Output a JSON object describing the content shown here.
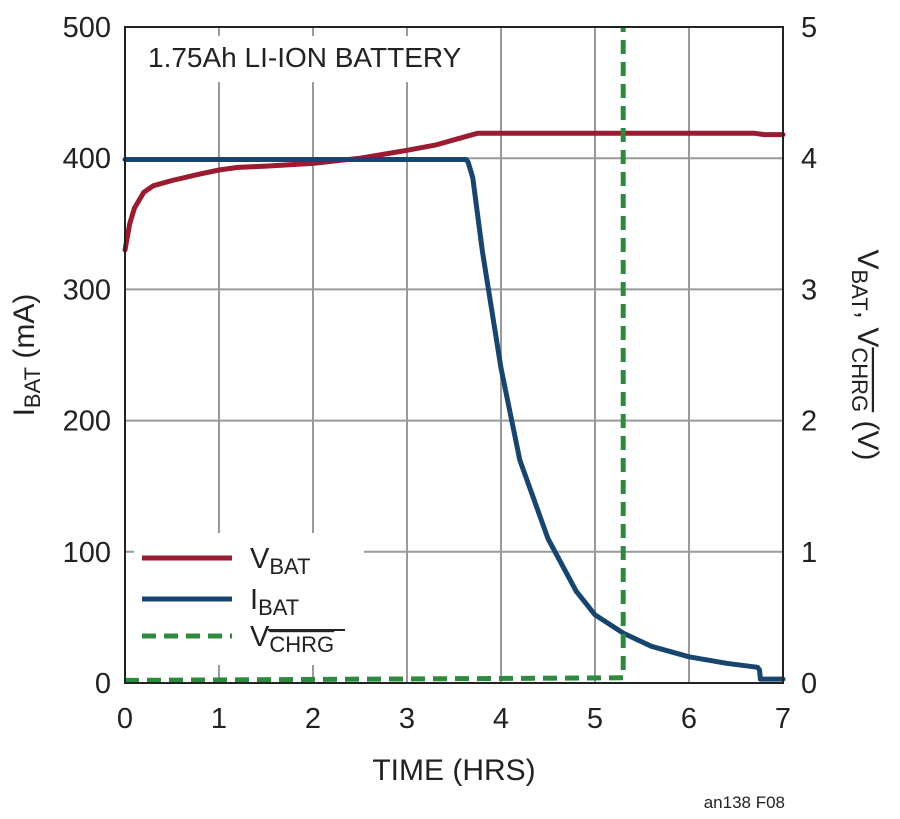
{
  "chart_data": {
    "type": "line",
    "title": "1.75Ah LI-ION BATTERY",
    "xlabel": "TIME (HRS)",
    "ylabel_left": {
      "main": "I",
      "sub": "BAT",
      "unit": " (mA)"
    },
    "ylabel_right": {
      "v1": "V",
      "sub1": "BAT",
      "sep": ", V",
      "sub2": "CHRG",
      "unit": "  (V)"
    },
    "xlim": [
      0,
      7
    ],
    "ylim_left": [
      0,
      500
    ],
    "ylim_right": [
      0,
      5
    ],
    "x_ticks": [
      "0",
      "1",
      "2",
      "3",
      "4",
      "5",
      "6",
      "7"
    ],
    "y_left_ticks": [
      "0",
      "100",
      "200",
      "300",
      "400",
      "500"
    ],
    "y_right_ticks": [
      "0",
      "1",
      "2",
      "3",
      "4",
      "5"
    ],
    "grid": true,
    "legend_position": "bottom-left",
    "series": [
      {
        "name": "BAT",
        "legend_prefix": "V",
        "axis": "right",
        "color": "#9b1b30",
        "dash": false,
        "x": [
          0,
          0.05,
          0.1,
          0.2,
          0.3,
          0.5,
          0.8,
          1.0,
          1.2,
          1.5,
          2.0,
          2.5,
          3.0,
          3.3,
          3.6,
          3.75,
          4.0,
          5.0,
          6.0,
          6.7,
          6.8,
          7.0
        ],
        "y": [
          3.3,
          3.5,
          3.62,
          3.74,
          3.79,
          3.83,
          3.88,
          3.91,
          3.93,
          3.94,
          3.96,
          4.0,
          4.06,
          4.1,
          4.16,
          4.19,
          4.19,
          4.19,
          4.19,
          4.19,
          4.18,
          4.18
        ]
      },
      {
        "name": "BAT",
        "legend_prefix": "I",
        "axis": "left",
        "color": "#17456e",
        "dash": false,
        "x": [
          0,
          3.63,
          3.65,
          3.7,
          3.8,
          3.9,
          4.0,
          4.2,
          4.5,
          4.8,
          5.0,
          5.3,
          5.6,
          6.0,
          6.4,
          6.73,
          6.75,
          6.76,
          7.0
        ],
        "y": [
          399,
          399,
          397,
          385,
          330,
          285,
          240,
          170,
          110,
          70,
          52,
          38,
          28,
          20,
          15,
          12,
          10,
          3,
          3
        ]
      },
      {
        "name": "CHRG",
        "legend_prefix": "V",
        "axis": "right",
        "color": "#2e8b3d",
        "dash": true,
        "x": [
          0,
          5.3,
          5.3,
          5.3
        ],
        "y": [
          0.02,
          0.04,
          0.04,
          5.0
        ]
      }
    ],
    "footnote": "an138 F08"
  }
}
